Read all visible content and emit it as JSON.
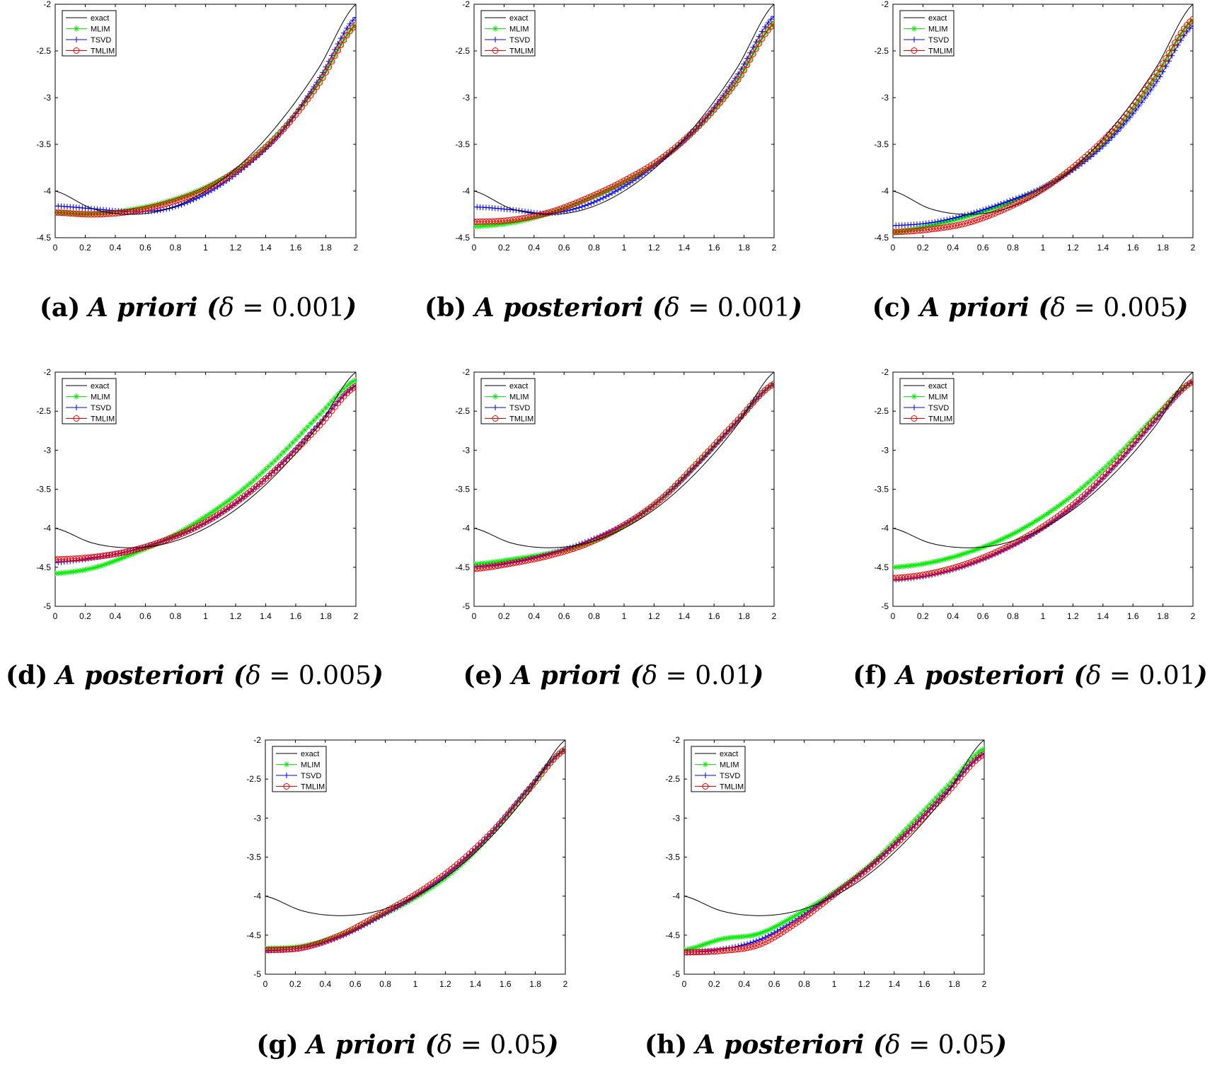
{
  "figure": {
    "legend": [
      "exact",
      "MLIM",
      "TSVD",
      "TMLIM"
    ],
    "colors": {
      "exact": "#000000",
      "MLIM": "#00ee00",
      "TSVD": "#0000ee",
      "TMLIM": "#ee0000"
    }
  },
  "chart_data": [
    {
      "id": "a",
      "type": "line",
      "caption": {
        "label": "(a)",
        "method": "A priori",
        "delta": "0.001"
      },
      "xlim": [
        0,
        2
      ],
      "ylim": [
        -4.5,
        -2
      ],
      "xticks": [
        "0",
        "0.2",
        "0.4",
        "0.6",
        "0.8",
        "1",
        "1.2",
        "1.4",
        "1.6",
        "1.8",
        "2"
      ],
      "yticks": [
        "-2",
        "-2.5",
        "-3",
        "-3.5",
        "-4",
        "-4.5"
      ],
      "x": [
        0,
        0.25,
        0.5,
        0.75,
        1,
        1.25,
        1.5,
        1.75,
        2
      ],
      "series": [
        {
          "name": "exact",
          "values": [
            -4.0,
            -4.19,
            -4.25,
            -4.19,
            -4.0,
            -3.69,
            -3.25,
            -2.69,
            -2.0
          ]
        },
        {
          "name": "MLIM",
          "values": [
            -4.23,
            -4.24,
            -4.2,
            -4.11,
            -3.96,
            -3.73,
            -3.36,
            -2.85,
            -2.22
          ]
        },
        {
          "name": "TSVD",
          "values": [
            -4.16,
            -4.19,
            -4.22,
            -4.19,
            -4.03,
            -3.76,
            -3.38,
            -2.81,
            -2.14
          ]
        },
        {
          "name": "TMLIM",
          "values": [
            -4.23,
            -4.25,
            -4.22,
            -4.13,
            -3.98,
            -3.73,
            -3.37,
            -2.86,
            -2.22
          ]
        }
      ]
    },
    {
      "id": "b",
      "type": "line",
      "caption": {
        "label": "(b)",
        "method": "A posteriori",
        "delta": "0.001"
      },
      "xlim": [
        0,
        2
      ],
      "ylim": [
        -4.5,
        -2
      ],
      "xticks": [
        "0",
        "0.2",
        "0.4",
        "0.6",
        "0.8",
        "1",
        "1.2",
        "1.4",
        "1.6",
        "1.8",
        "2"
      ],
      "yticks": [
        "-2",
        "-2.5",
        "-3",
        "-3.5",
        "-4",
        "-4.5"
      ],
      "x": [
        0,
        0.25,
        0.5,
        0.75,
        1,
        1.25,
        1.5,
        1.75,
        2
      ],
      "series": [
        {
          "name": "exact",
          "values": [
            -4.0,
            -4.19,
            -4.25,
            -4.19,
            -4.0,
            -3.69,
            -3.25,
            -2.69,
            -2.0
          ]
        },
        {
          "name": "MLIM",
          "values": [
            -4.38,
            -4.34,
            -4.24,
            -4.09,
            -3.91,
            -3.66,
            -3.31,
            -2.83,
            -2.2
          ]
        },
        {
          "name": "TSVD",
          "values": [
            -4.17,
            -4.2,
            -4.24,
            -4.15,
            -3.95,
            -3.67,
            -3.3,
            -2.77,
            -2.13
          ]
        },
        {
          "name": "TMLIM",
          "values": [
            -4.33,
            -4.31,
            -4.23,
            -4.08,
            -3.89,
            -3.65,
            -3.3,
            -2.83,
            -2.21
          ]
        }
      ]
    },
    {
      "id": "c",
      "type": "line",
      "caption": {
        "label": "(c)",
        "method": "A priori",
        "delta": "0.005"
      },
      "xlim": [
        0,
        2
      ],
      "ylim": [
        -4.5,
        -2
      ],
      "xticks": [
        "0",
        "0.2",
        "0.4",
        "0.6",
        "0.8",
        "1",
        "1.2",
        "1.4",
        "1.6",
        "1.8",
        "2"
      ],
      "yticks": [
        "-2",
        "-2.5",
        "-3",
        "-3.5",
        "-4",
        "-4.5"
      ],
      "x": [
        0,
        0.25,
        0.5,
        0.75,
        1,
        1.25,
        1.5,
        1.75,
        2
      ],
      "series": [
        {
          "name": "exact",
          "values": [
            -4.0,
            -4.19,
            -4.25,
            -4.19,
            -4.0,
            -3.69,
            -3.25,
            -2.69,
            -2.0
          ]
        },
        {
          "name": "MLIM",
          "values": [
            -4.44,
            -4.37,
            -4.27,
            -4.14,
            -3.96,
            -3.7,
            -3.32,
            -2.78,
            -2.17
          ]
        },
        {
          "name": "TSVD",
          "values": [
            -4.37,
            -4.34,
            -4.25,
            -4.12,
            -3.96,
            -3.72,
            -3.36,
            -2.85,
            -2.23
          ]
        },
        {
          "name": "TMLIM",
          "values": [
            -4.44,
            -4.41,
            -4.34,
            -4.19,
            -3.98,
            -3.68,
            -3.29,
            -2.76,
            -2.16
          ]
        }
      ]
    },
    {
      "id": "d",
      "type": "line",
      "caption": {
        "label": "(d)",
        "method": "A posteriori",
        "delta": "0.005"
      },
      "xlim": [
        0,
        2
      ],
      "ylim": [
        -5,
        -2
      ],
      "xticks": [
        "0",
        "0.2",
        "0.4",
        "0.6",
        "0.8",
        "1",
        "1.2",
        "1.4",
        "1.6",
        "1.8",
        "2"
      ],
      "yticks": [
        "-2",
        "-2.5",
        "-3",
        "-3.5",
        "-4",
        "-4.5",
        "-5"
      ],
      "x": [
        0,
        0.25,
        0.5,
        0.75,
        1,
        1.25,
        1.5,
        1.75,
        2
      ],
      "series": [
        {
          "name": "exact",
          "values": [
            -4.0,
            -4.19,
            -4.25,
            -4.19,
            -4.0,
            -3.69,
            -3.25,
            -2.69,
            -2.0
          ]
        },
        {
          "name": "MLIM",
          "values": [
            -4.58,
            -4.51,
            -4.34,
            -4.13,
            -3.85,
            -3.5,
            -3.06,
            -2.56,
            -2.1
          ]
        },
        {
          "name": "TSVD",
          "values": [
            -4.44,
            -4.38,
            -4.29,
            -4.14,
            -3.93,
            -3.61,
            -3.18,
            -2.67,
            -2.17
          ]
        },
        {
          "name": "TMLIM",
          "values": [
            -4.4,
            -4.37,
            -4.29,
            -4.14,
            -3.92,
            -3.6,
            -3.19,
            -2.7,
            -2.18
          ]
        }
      ]
    },
    {
      "id": "e",
      "type": "line",
      "caption": {
        "label": "(e)",
        "method": "A priori",
        "delta": "0.01"
      },
      "xlim": [
        0,
        2
      ],
      "ylim": [
        -5,
        -2
      ],
      "xticks": [
        "0",
        "0.2",
        "0.4",
        "0.6",
        "0.8",
        "1",
        "1.2",
        "1.4",
        "1.6",
        "1.8",
        "2"
      ],
      "yticks": [
        "-2",
        "-2.5",
        "-3",
        "-3.5",
        "-4",
        "-4.5",
        "-5"
      ],
      "x": [
        0,
        0.25,
        0.5,
        0.75,
        1,
        1.25,
        1.5,
        1.75,
        2
      ],
      "series": [
        {
          "name": "exact",
          "values": [
            -4.0,
            -4.19,
            -4.25,
            -4.19,
            -4.0,
            -3.69,
            -3.25,
            -2.69,
            -2.0
          ]
        },
        {
          "name": "MLIM",
          "values": [
            -4.46,
            -4.4,
            -4.32,
            -4.2,
            -3.97,
            -3.62,
            -3.15,
            -2.64,
            -2.15
          ]
        },
        {
          "name": "TSVD",
          "values": [
            -4.5,
            -4.44,
            -4.33,
            -4.17,
            -3.95,
            -3.62,
            -3.16,
            -2.64,
            -2.15
          ]
        },
        {
          "name": "TMLIM",
          "values": [
            -4.52,
            -4.45,
            -4.35,
            -4.2,
            -3.96,
            -3.62,
            -3.14,
            -2.63,
            -2.15
          ]
        }
      ]
    },
    {
      "id": "f",
      "type": "line",
      "caption": {
        "label": "(f)",
        "method": "A posteriori",
        "delta": "0.01"
      },
      "xlim": [
        0,
        2
      ],
      "ylim": [
        -5,
        -2
      ],
      "xticks": [
        "0",
        "0.2",
        "0.4",
        "0.6",
        "0.8",
        "1",
        "1.2",
        "1.4",
        "1.6",
        "1.8",
        "2"
      ],
      "yticks": [
        "-2",
        "-2.5",
        "-3",
        "-3.5",
        "-4",
        "-4.5",
        "-5"
      ],
      "x": [
        0,
        0.25,
        0.5,
        0.75,
        1,
        1.25,
        1.5,
        1.75,
        2
      ],
      "series": [
        {
          "name": "exact",
          "values": [
            -4.0,
            -4.19,
            -4.25,
            -4.19,
            -4.0,
            -3.69,
            -3.25,
            -2.69,
            -2.0
          ]
        },
        {
          "name": "MLIM",
          "values": [
            -4.5,
            -4.44,
            -4.31,
            -4.12,
            -3.85,
            -3.5,
            -3.06,
            -2.56,
            -2.12
          ]
        },
        {
          "name": "TSVD",
          "values": [
            -4.66,
            -4.6,
            -4.47,
            -4.27,
            -4.0,
            -3.64,
            -3.16,
            -2.62,
            -2.12
          ]
        },
        {
          "name": "TMLIM",
          "values": [
            -4.64,
            -4.58,
            -4.45,
            -4.25,
            -3.98,
            -3.62,
            -3.14,
            -2.6,
            -2.12
          ]
        }
      ]
    },
    {
      "id": "g",
      "type": "line",
      "caption": {
        "label": "(g)",
        "method": "A priori",
        "delta": "0.05"
      },
      "xlim": [
        0,
        2
      ],
      "ylim": [
        -5,
        -2
      ],
      "xticks": [
        "0",
        "0.2",
        "0.4",
        "0.6",
        "0.8",
        "1",
        "1.2",
        "1.4",
        "1.6",
        "1.8",
        "2"
      ],
      "yticks": [
        "-2",
        "-2.5",
        "-3",
        "-3.5",
        "-4",
        "-4.5",
        "-5"
      ],
      "x": [
        0,
        0.25,
        0.5,
        0.75,
        1,
        1.25,
        1.5,
        1.75,
        2
      ],
      "series": [
        {
          "name": "exact",
          "values": [
            -4.0,
            -4.19,
            -4.25,
            -4.19,
            -4.0,
            -3.69,
            -3.25,
            -2.69,
            -2.0
          ]
        },
        {
          "name": "MLIM",
          "values": [
            -4.67,
            -4.64,
            -4.5,
            -4.27,
            -4.02,
            -3.69,
            -3.22,
            -2.64,
            -2.12
          ]
        },
        {
          "name": "TSVD",
          "values": [
            -4.7,
            -4.66,
            -4.52,
            -4.28,
            -4.0,
            -3.66,
            -3.2,
            -2.63,
            -2.12
          ]
        },
        {
          "name": "TMLIM",
          "values": [
            -4.69,
            -4.66,
            -4.5,
            -4.25,
            -3.98,
            -3.64,
            -3.2,
            -2.65,
            -2.12
          ]
        }
      ]
    },
    {
      "id": "h",
      "type": "line",
      "caption": {
        "label": "(h)",
        "method": "A posteriori",
        "delta": "0.05"
      },
      "xlim": [
        0,
        2
      ],
      "ylim": [
        -5,
        -2
      ],
      "xticks": [
        "0",
        "0.2",
        "0.4",
        "0.6",
        "0.8",
        "1",
        "1.2",
        "1.4",
        "1.6",
        "1.8",
        "2"
      ],
      "yticks": [
        "-2",
        "-2.5",
        "-3",
        "-3.5",
        "-4",
        "-4.5",
        "-5"
      ],
      "x": [
        0,
        0.25,
        0.5,
        0.75,
        1,
        1.25,
        1.5,
        1.75,
        2
      ],
      "series": [
        {
          "name": "exact",
          "values": [
            -4.0,
            -4.19,
            -4.25,
            -4.19,
            -4.0,
            -3.69,
            -3.25,
            -2.69,
            -2.0
          ]
        },
        {
          "name": "MLIM",
          "values": [
            -4.69,
            -4.55,
            -4.48,
            -4.24,
            -3.95,
            -3.58,
            -3.1,
            -2.6,
            -2.11
          ]
        },
        {
          "name": "TSVD",
          "values": [
            -4.72,
            -4.68,
            -4.56,
            -4.3,
            -3.97,
            -3.6,
            -3.16,
            -2.66,
            -2.17
          ]
        },
        {
          "name": "TMLIM",
          "values": [
            -4.72,
            -4.7,
            -4.62,
            -4.34,
            -3.98,
            -3.61,
            -3.17,
            -2.68,
            -2.18
          ]
        }
      ]
    }
  ]
}
